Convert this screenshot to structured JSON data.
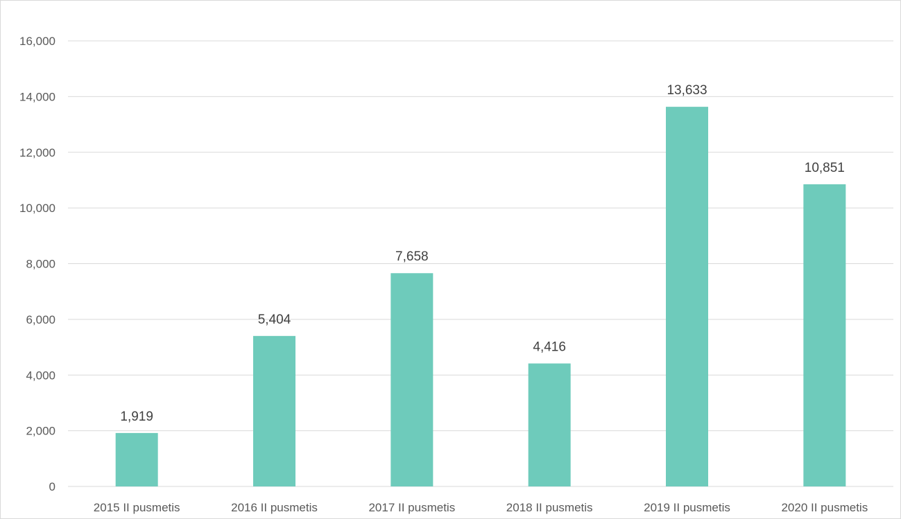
{
  "chart_data": {
    "type": "bar",
    "title": "",
    "xlabel": "",
    "ylabel": "",
    "categories": [
      "2015 II pusmetis",
      "2016 II pusmetis",
      "2017 II pusmetis",
      "2018 II pusmetis",
      "2019 II pusmetis",
      "2020 II pusmetis"
    ],
    "values": [
      1919,
      5404,
      7658,
      4416,
      13633,
      10851
    ],
    "value_labels": [
      "1,919",
      "5,404",
      "7,658",
      "4,416",
      "13,633",
      "10,851"
    ],
    "ylim": [
      0,
      16000
    ],
    "y_ticks": [
      0,
      2000,
      4000,
      6000,
      8000,
      10000,
      12000,
      14000,
      16000
    ],
    "y_tick_labels": [
      "0",
      "2,000",
      "4,000",
      "6,000",
      "8,000",
      "10,000",
      "12,000",
      "14,000",
      "16,000"
    ],
    "grid": true,
    "legend": "none",
    "bar_color": "#6ecbbb",
    "grid_color": "#d9d9d9"
  }
}
